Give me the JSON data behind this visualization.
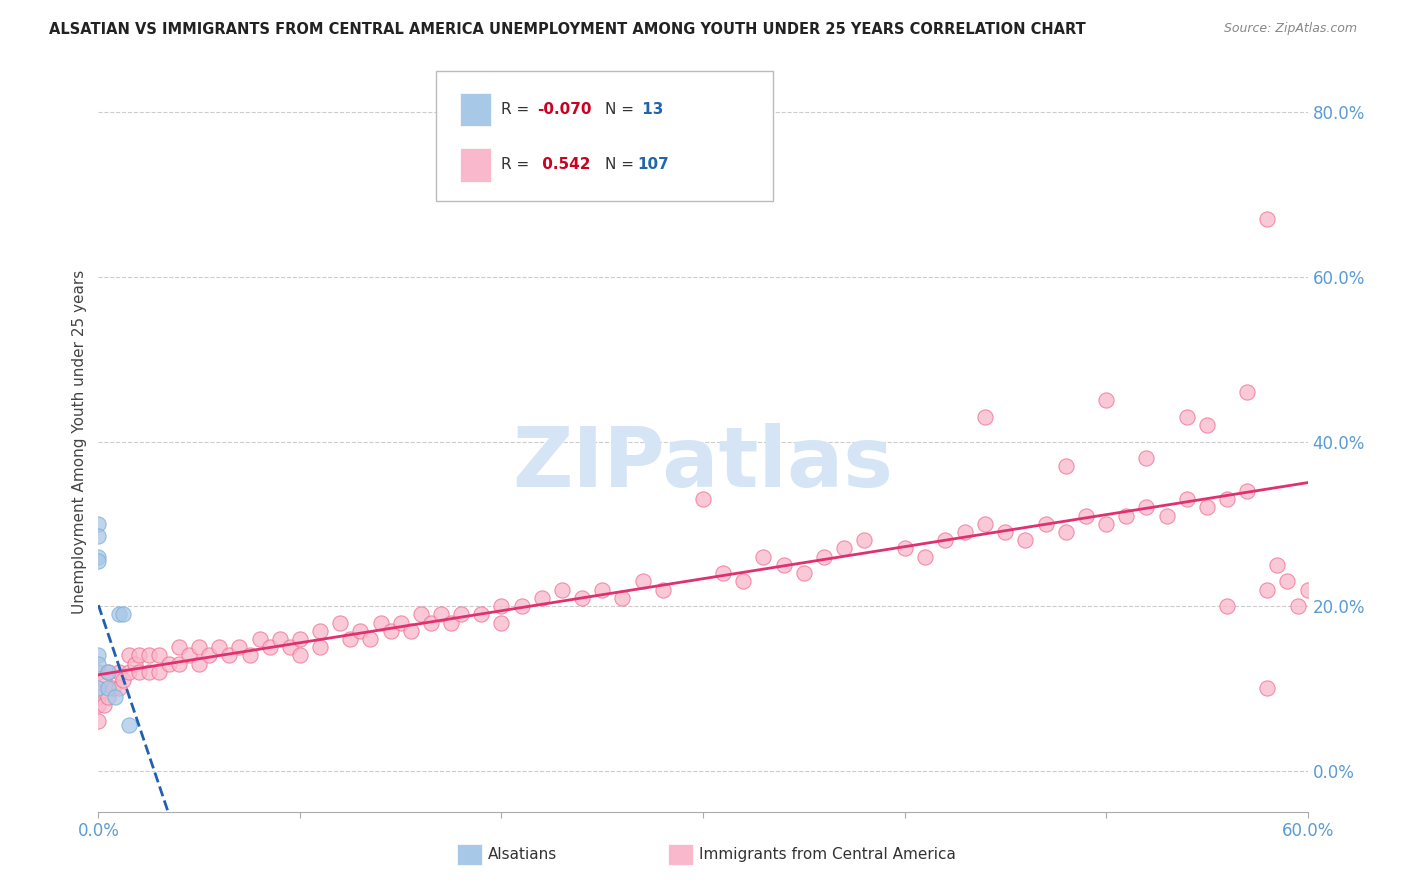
{
  "title": "ALSATIAN VS IMMIGRANTS FROM CENTRAL AMERICA UNEMPLOYMENT AMONG YOUTH UNDER 25 YEARS CORRELATION CHART",
  "source": "Source: ZipAtlas.com",
  "ylabel": "Unemployment Among Youth under 25 years",
  "xlim": [
    0.0,
    0.6
  ],
  "ylim": [
    -0.05,
    0.85
  ],
  "xtick_positions": [
    0.0,
    0.1,
    0.2,
    0.3,
    0.4,
    0.5,
    0.6
  ],
  "xtick_labels": [
    "0.0%",
    "",
    "",
    "",
    "",
    "",
    "60.0%"
  ],
  "ytick_right_vals": [
    0.0,
    0.2,
    0.4,
    0.6,
    0.8
  ],
  "ytick_right_labels": [
    "0.0%",
    "20.0%",
    "40.0%",
    "60.0%",
    "80.0%"
  ],
  "background_color": "#ffffff",
  "blue_color": "#a8c8e8",
  "blue_edge_color": "#7aafd4",
  "pink_color": "#f9b8cb",
  "pink_edge_color": "#f07090",
  "blue_line_color": "#2060b0",
  "pink_line_color": "#e03070",
  "watermark_color": "#d5e5f5",
  "grid_color": "#cccccc",
  "right_tick_color": "#5b9bd5",
  "title_color": "#222222",
  "label_color": "#444444",
  "alsatian_x": [
    0.0,
    0.0,
    0.0,
    0.0,
    0.0,
    0.0,
    0.0,
    0.005,
    0.005,
    0.008,
    0.01,
    0.012,
    0.015
  ],
  "alsatian_y": [
    0.3,
    0.285,
    0.26,
    0.255,
    0.14,
    0.13,
    0.1,
    0.12,
    0.1,
    0.09,
    0.19,
    0.19,
    0.055
  ],
  "ca_x": [
    0.0,
    0.0,
    0.0,
    0.0,
    0.0,
    0.003,
    0.003,
    0.005,
    0.005,
    0.007,
    0.01,
    0.01,
    0.012,
    0.015,
    0.015,
    0.018,
    0.02,
    0.02,
    0.025,
    0.025,
    0.03,
    0.03,
    0.035,
    0.04,
    0.04,
    0.045,
    0.05,
    0.05,
    0.055,
    0.06,
    0.065,
    0.07,
    0.075,
    0.08,
    0.085,
    0.09,
    0.095,
    0.1,
    0.1,
    0.11,
    0.11,
    0.12,
    0.125,
    0.13,
    0.135,
    0.14,
    0.145,
    0.15,
    0.155,
    0.16,
    0.165,
    0.17,
    0.175,
    0.18,
    0.19,
    0.2,
    0.2,
    0.21,
    0.22,
    0.23,
    0.24,
    0.25,
    0.26,
    0.27,
    0.28,
    0.3,
    0.31,
    0.32,
    0.33,
    0.34,
    0.35,
    0.36,
    0.37,
    0.38,
    0.4,
    0.41,
    0.42,
    0.43,
    0.44,
    0.45,
    0.46,
    0.47,
    0.48,
    0.49,
    0.5,
    0.51,
    0.52,
    0.53,
    0.54,
    0.55,
    0.56,
    0.57,
    0.58,
    0.585,
    0.59,
    0.595,
    0.6,
    0.44,
    0.5,
    0.54,
    0.55,
    0.57,
    0.58,
    0.48,
    0.52,
    0.56,
    0.58
  ],
  "ca_y": [
    0.12,
    0.1,
    0.09,
    0.08,
    0.06,
    0.11,
    0.08,
    0.12,
    0.09,
    0.1,
    0.12,
    0.1,
    0.11,
    0.14,
    0.12,
    0.13,
    0.14,
    0.12,
    0.14,
    0.12,
    0.14,
    0.12,
    0.13,
    0.15,
    0.13,
    0.14,
    0.15,
    0.13,
    0.14,
    0.15,
    0.14,
    0.15,
    0.14,
    0.16,
    0.15,
    0.16,
    0.15,
    0.16,
    0.14,
    0.17,
    0.15,
    0.18,
    0.16,
    0.17,
    0.16,
    0.18,
    0.17,
    0.18,
    0.17,
    0.19,
    0.18,
    0.19,
    0.18,
    0.19,
    0.19,
    0.2,
    0.18,
    0.2,
    0.21,
    0.22,
    0.21,
    0.22,
    0.21,
    0.23,
    0.22,
    0.33,
    0.24,
    0.23,
    0.26,
    0.25,
    0.24,
    0.26,
    0.27,
    0.28,
    0.27,
    0.26,
    0.28,
    0.29,
    0.3,
    0.29,
    0.28,
    0.3,
    0.29,
    0.31,
    0.3,
    0.31,
    0.32,
    0.31,
    0.33,
    0.32,
    0.33,
    0.34,
    0.22,
    0.25,
    0.23,
    0.2,
    0.22,
    0.43,
    0.45,
    0.43,
    0.42,
    0.46,
    0.67,
    0.37,
    0.38,
    0.2,
    0.1
  ]
}
